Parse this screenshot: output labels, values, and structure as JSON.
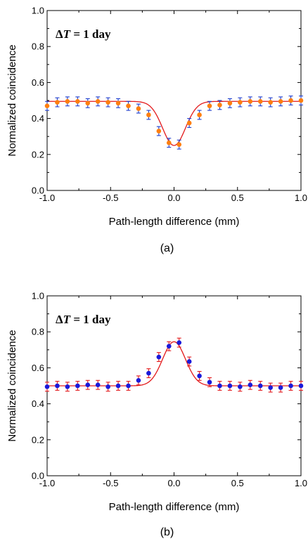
{
  "chart_data": [
    {
      "type": "scatter",
      "panel_label": "(a)",
      "title": "",
      "annotation": {
        "delta": "Δ",
        "var": "T",
        "rest": " = 1 day"
      },
      "xlabel": "Path-length difference (mm)",
      "ylabel": "Normalized coincidence",
      "xlim": [
        -1.0,
        1.0
      ],
      "ylim": [
        0.0,
        1.0
      ],
      "xticks": [
        "-1.0",
        "-0.5",
        "0.0",
        "0.5",
        "1.0"
      ],
      "yticks": [
        "0.0",
        "0.2",
        "0.4",
        "0.6",
        "0.8",
        "1.0"
      ],
      "grid": false,
      "colors": {
        "marker": "#ff7f0e",
        "errorbar": "#1f3fcf",
        "fit": "#e31a1c"
      },
      "points": {
        "x": [
          -1.0,
          -0.92,
          -0.84,
          -0.76,
          -0.68,
          -0.6,
          -0.52,
          -0.44,
          -0.36,
          -0.28,
          -0.2,
          -0.12,
          -0.04,
          0.04,
          0.12,
          0.2,
          0.28,
          0.36,
          0.44,
          0.52,
          0.6,
          0.68,
          0.76,
          0.84,
          0.92,
          1.0
        ],
        "y": [
          0.47,
          0.49,
          0.495,
          0.495,
          0.485,
          0.495,
          0.49,
          0.485,
          0.47,
          0.455,
          0.42,
          0.33,
          0.265,
          0.255,
          0.375,
          0.42,
          0.47,
          0.475,
          0.485,
          0.49,
          0.495,
          0.495,
          0.49,
          0.495,
          0.5,
          0.5
        ],
        "err": 0.025
      },
      "fit": {
        "baseline": 0.495,
        "amplitude": -0.245,
        "center": 0.0,
        "sigma": 0.09
      }
    },
    {
      "type": "scatter",
      "panel_label": "(b)",
      "title": "",
      "annotation": {
        "delta": "Δ",
        "var": "T",
        "rest": " = 1 day"
      },
      "xlabel": "Path-length difference (mm)",
      "ylabel": "Normalized coincidence",
      "xlim": [
        -1.0,
        1.0
      ],
      "ylim": [
        0.0,
        1.0
      ],
      "xticks": [
        "-1.0",
        "-0.5",
        "0.0",
        "0.5",
        "1.0"
      ],
      "yticks": [
        "0.0",
        "0.2",
        "0.4",
        "0.6",
        "0.8",
        "1.0"
      ],
      "grid": false,
      "colors": {
        "marker": "#1a1adb",
        "errorbar": "#e31a1c",
        "fit": "#e31a1c"
      },
      "points": {
        "x": [
          -1.0,
          -0.92,
          -0.84,
          -0.76,
          -0.68,
          -0.6,
          -0.52,
          -0.44,
          -0.36,
          -0.28,
          -0.2,
          -0.12,
          -0.04,
          0.04,
          0.12,
          0.2,
          0.28,
          0.36,
          0.44,
          0.52,
          0.6,
          0.68,
          0.76,
          0.84,
          0.92,
          1.0
        ],
        "y": [
          0.495,
          0.5,
          0.495,
          0.5,
          0.505,
          0.505,
          0.495,
          0.5,
          0.5,
          0.53,
          0.57,
          0.66,
          0.72,
          0.74,
          0.635,
          0.555,
          0.52,
          0.5,
          0.5,
          0.495,
          0.505,
          0.5,
          0.49,
          0.49,
          0.5,
          0.5
        ],
        "err": 0.025
      },
      "fit": {
        "baseline": 0.5,
        "amplitude": 0.245,
        "center": 0.0,
        "sigma": 0.09
      }
    }
  ]
}
